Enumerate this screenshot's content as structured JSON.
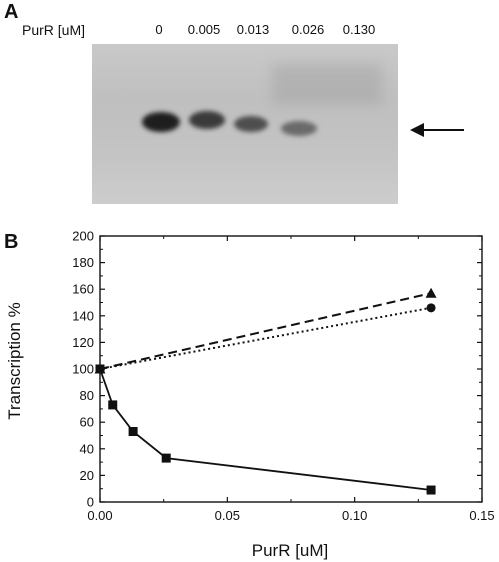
{
  "panel_a": {
    "letter": "A",
    "purr_label": "PurR [uM]",
    "concentrations": [
      "0",
      "0.005",
      "0.013",
      "0.026",
      "0.130"
    ]
  },
  "panel_b": {
    "letter": "B"
  },
  "colors": {
    "ink": "#111111",
    "gel_background": "#c6c6c6"
  },
  "icons": {
    "gel_arrow": "left-arrow-icon"
  },
  "chart_data": {
    "type": "line",
    "title": "",
    "xlabel": "PurR [uM]",
    "ylabel": "Transcription   %",
    "xlim": [
      0,
      0.15
    ],
    "ylim": [
      0,
      200
    ],
    "xticks": [
      0,
      0.05,
      0.1,
      0.15
    ],
    "xtick_labels": [
      "0.00",
      "0.05",
      "0.10",
      "0.15"
    ],
    "yticks": [
      0,
      20,
      40,
      60,
      80,
      100,
      120,
      140,
      160,
      180,
      200
    ],
    "grid": false,
    "legend": "none",
    "series": [
      {
        "marker": "square",
        "line_style": "solid",
        "x": [
          0,
          0.005,
          0.013,
          0.026,
          0.13
        ],
        "y": [
          100,
          73,
          53,
          33,
          9
        ]
      },
      {
        "marker": "triangle",
        "line_style": "dashed",
        "x": [
          0,
          0.13
        ],
        "y": [
          100,
          157
        ]
      },
      {
        "marker": "circle",
        "line_style": "dotted",
        "x": [
          0,
          0.13
        ],
        "y": [
          100,
          146
        ]
      }
    ]
  }
}
